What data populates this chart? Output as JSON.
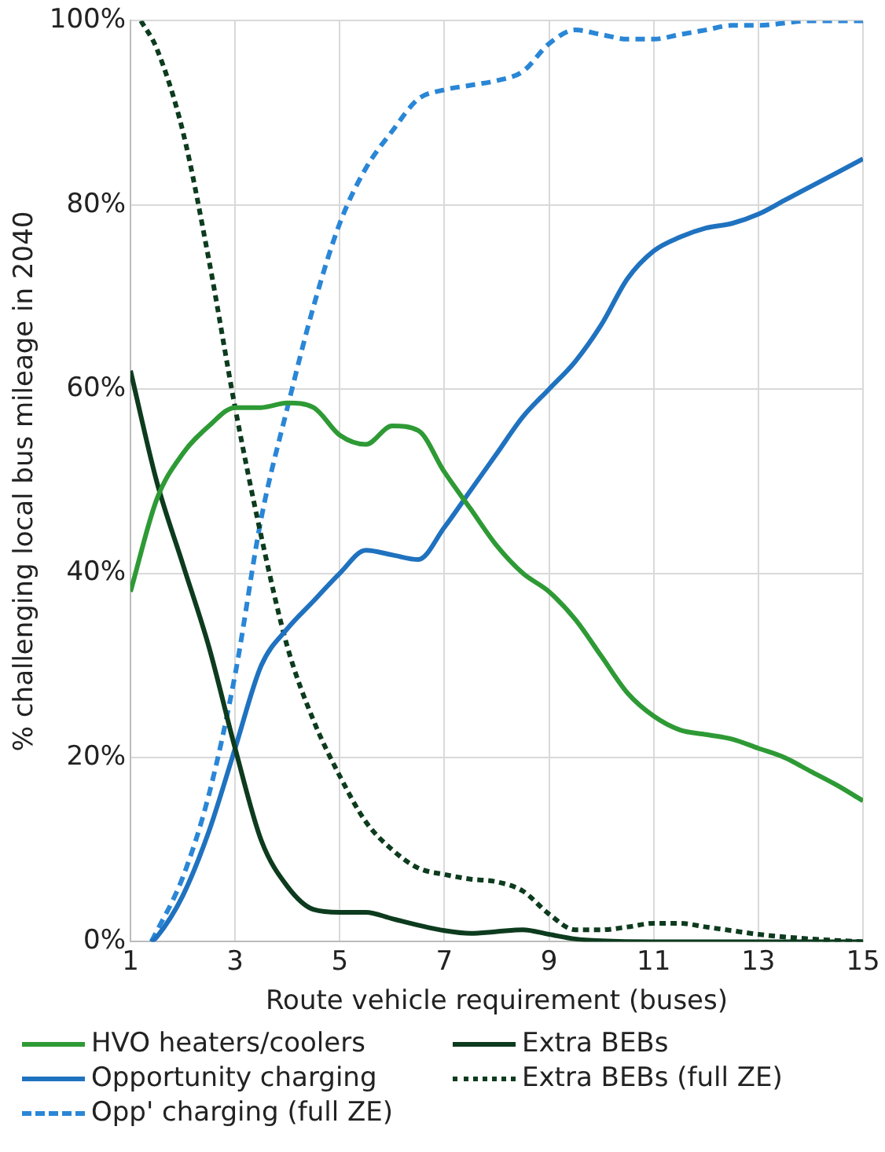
{
  "chart_data": {
    "type": "line",
    "xlabel": "Route vehicle requirement (buses)",
    "ylabel": "% challenging local bus mileage in 2040",
    "xlim": [
      1,
      15
    ],
    "xticks": [
      1,
      3,
      5,
      7,
      9,
      11,
      13,
      15
    ],
    "ylim": [
      0,
      100
    ],
    "yticks": [
      {
        "value": 0,
        "label": "0%"
      },
      {
        "value": 20,
        "label": "20%"
      },
      {
        "value": 40,
        "label": "40%"
      },
      {
        "value": 60,
        "label": "60%"
      },
      {
        "value": 80,
        "label": "80%"
      },
      {
        "value": 100,
        "label": "100%"
      }
    ],
    "grid": true,
    "legend": "bottom",
    "marker": "none",
    "series": [
      {
        "name": "HVO heaters/coolers",
        "color": "#2e9a35",
        "line_style": "solid",
        "x": [
          1,
          1.5,
          2,
          2.5,
          3,
          3.5,
          4,
          4.5,
          5,
          5.5,
          6,
          6.5,
          7,
          7.5,
          8,
          8.5,
          9,
          9.5,
          10,
          10.5,
          11,
          11.5,
          12,
          12.5,
          13,
          13.5,
          14,
          14.5,
          15
        ],
        "values": [
          38,
          48,
          53,
          56,
          58,
          58,
          58.5,
          58,
          55,
          54,
          56,
          55.5,
          51,
          47,
          43,
          40,
          38,
          35,
          31,
          27,
          24.5,
          23,
          22.5,
          22,
          21,
          20,
          18.5,
          17,
          15.3
        ]
      },
      {
        "name": "Extra BEBs",
        "color": "#0d3b1e",
        "line_style": "solid",
        "x": [
          1,
          1.5,
          2,
          2.5,
          3,
          3.5,
          4,
          4.5,
          5,
          5.5,
          6,
          6.5,
          7,
          7.5,
          8,
          8.5,
          9,
          9.5,
          10,
          11,
          12,
          13,
          14,
          15
        ],
        "values": [
          62,
          50,
          41,
          32,
          21,
          11,
          6,
          3.5,
          3.2,
          3.2,
          2.5,
          1.8,
          1.2,
          0.9,
          1.1,
          1.3,
          0.8,
          0.3,
          0.1,
          0,
          0,
          0,
          0,
          0
        ]
      },
      {
        "name": "Opportunity charging",
        "color": "#1f72bf",
        "line_style": "solid",
        "x": [
          1.4,
          1.5,
          2,
          2.5,
          3,
          3.5,
          4,
          4.5,
          5,
          5.5,
          6,
          6.5,
          7,
          7.5,
          8,
          8.5,
          9,
          9.5,
          10,
          10.5,
          11,
          11.5,
          12,
          12.5,
          13,
          13.5,
          14,
          14.5,
          15
        ],
        "values": [
          0,
          0.5,
          5,
          12,
          21,
          30,
          34,
          37,
          40,
          42.5,
          42,
          41.5,
          45,
          49,
          53,
          57,
          60,
          63,
          67,
          72,
          75,
          76.5,
          77.5,
          78,
          79,
          80.5,
          82,
          83.5,
          85
        ]
      },
      {
        "name": "Extra BEBs (full ZE)",
        "color": "#0d3b1e",
        "line_style": "dotted",
        "x": [
          1.2,
          1.5,
          2,
          2.5,
          3,
          3.5,
          4,
          4.5,
          5,
          5.5,
          6,
          6.5,
          7,
          7.5,
          8,
          8.5,
          9,
          9.5,
          10,
          10.5,
          11,
          11.5,
          12,
          12.5,
          13,
          14,
          15
        ],
        "values": [
          100,
          97,
          88,
          74,
          58,
          44,
          32,
          24,
          18,
          13,
          10,
          8,
          7.3,
          6.8,
          6.5,
          5.5,
          3,
          1.3,
          1.3,
          1.6,
          2,
          2,
          1.6,
          1.2,
          0.8,
          0.3,
          0
        ]
      },
      {
        "name": "Opp' charging (full ZE)",
        "color": "#2a86d6",
        "line_style": "dashed",
        "x": [
          1.4,
          2,
          2.5,
          3,
          3.5,
          4,
          4.5,
          5,
          5.5,
          6,
          6.5,
          7,
          7.5,
          8,
          8.5,
          9,
          9.5,
          10,
          10.5,
          11,
          11.5,
          12,
          12.5,
          13,
          14,
          15
        ],
        "values": [
          0,
          7,
          16,
          29,
          46,
          58,
          69,
          78,
          84,
          88,
          91.5,
          92.5,
          93,
          93.5,
          94.5,
          97.5,
          99,
          98.5,
          98,
          98,
          98.5,
          99,
          99.5,
          99.5,
          100,
          100
        ]
      }
    ]
  }
}
